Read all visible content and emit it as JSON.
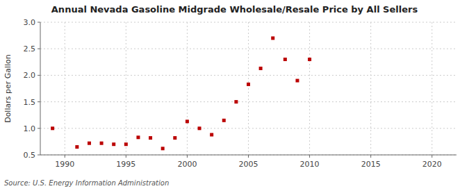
{
  "chart_data": {
    "type": "scatter",
    "title": "Annual Nevada Gasoline Midgrade Wholesale/Resale Price by All Sellers",
    "ylabel": "Dollars per Gallon",
    "annotations": [
      "Source: U.S. Energy Information Administration"
    ],
    "x": [
      1989,
      1991,
      1992,
      1993,
      1994,
      1995,
      1996,
      1997,
      1998,
      1999,
      2000,
      2001,
      2002,
      2003,
      2004,
      2005,
      2006,
      2007,
      2008,
      2009,
      2010
    ],
    "values": [
      1.0,
      0.65,
      0.72,
      0.72,
      0.7,
      0.7,
      0.83,
      0.82,
      0.62,
      0.82,
      1.13,
      1.0,
      0.88,
      1.15,
      1.5,
      1.83,
      2.13,
      2.7,
      2.3,
      1.9,
      2.3
    ],
    "color": "#bb0000",
    "marker": "square",
    "xlim": [
      1988,
      2022
    ],
    "ylim": [
      0.5,
      3.0
    ],
    "xticks": [
      1990,
      1995,
      2000,
      2005,
      2010,
      2015,
      2020
    ],
    "yticks": [
      0.5,
      {
        "value": 1.0,
        "label": "1.0"
      },
      1.5,
      {
        "value": 2.0,
        "label": "2.0"
      },
      2.5,
      {
        "value": 3.0,
        "label": "3.0"
      }
    ],
    "grid": true
  }
}
